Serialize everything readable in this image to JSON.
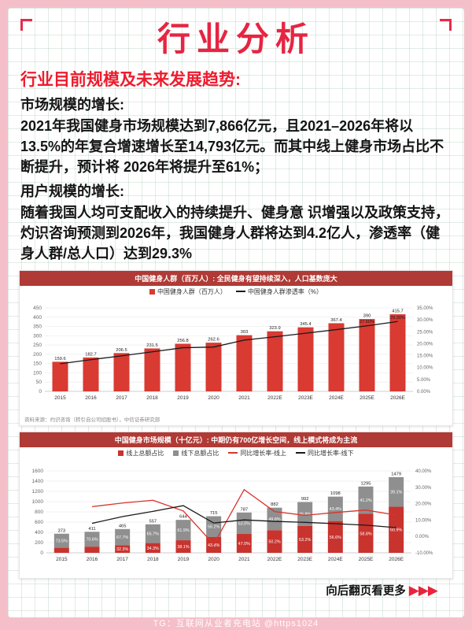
{
  "frame": {
    "watermark": "TG：互联网从业者充电站 @https1024"
  },
  "header": {
    "title": "行业分析"
  },
  "section": {
    "subtitle": "行业目前规模及未来发展趋势:"
  },
  "body": {
    "market_heading": "市场规模的增长:",
    "market_text": "2021年我国健身市场规模达到7,866亿元，且2021–2026年将以13.5%的年复合增速增长至14,793亿元。而其中线上健身市场占比不断提升，预计将 2026年将提升至61%；",
    "user_heading": "用户规模的增长:",
    "user_text": "随着我国人均可支配收入的持续提升、健身意 识增强以及政策支持，灼识咨询预测到2026年，我国健身人群将达到4.2亿人，渗透率（健身人群/总人口）达到29.3%"
  },
  "footer": {
    "more": "向后翻页看更多",
    "arrows": "▶▶▶"
  },
  "chart_data": [
    {
      "type": "bar",
      "title": "中国健身人群（百万人）: 全民健身有望持续深入，人口基数庞大",
      "legend": [
        "中国健身人群（百万人）",
        "中国健身人群渗透率（%）"
      ],
      "categories": [
        "2015",
        "2016",
        "2017",
        "2018",
        "2019",
        "2020",
        "2021",
        "2022E",
        "2023E",
        "2024E",
        "2025E",
        "2026E"
      ],
      "bars": {
        "name": "中国健身人群（百万人）",
        "color": "#d93a32",
        "values": [
          159.6,
          182.7,
          206.5,
          231.5,
          256.8,
          262.6,
          303,
          323.9,
          345.4,
          367.4,
          390,
          415.7
        ]
      },
      "line": {
        "name": "中国健身人群渗透率（%）",
        "color": "#1a1a1a",
        "values": [
          11.6,
          13.3,
          14.9,
          16.6,
          18.3,
          18.6,
          21.5,
          22.9,
          24.4,
          25.9,
          27.5,
          29.3
        ],
        "labels": {
          "10": "27.50%",
          "11": "29.30%"
        }
      },
      "left_axis": {
        "min": 0,
        "max": 450,
        "step": 50
      },
      "right_axis": {
        "min": 0,
        "max": 35,
        "step": 5,
        "suffix": "%"
      },
      "source": "资料来源：灼识咨询（转引自公司招股书），中信证券研究部"
    },
    {
      "type": "stacked-bar+line",
      "title": "中国健身市场规模（十亿元）: 中期仍有700亿增长空间，线上模式将成为主流",
      "legend": [
        "线上总额占比",
        "线下总额占比",
        "同比增长率-线上",
        "同比增长率-线下"
      ],
      "categories": [
        "2015",
        "2016",
        "2017",
        "2018",
        "2019",
        "2020",
        "2021",
        "2022E",
        "2023E",
        "2024E",
        "2025E",
        "2026E"
      ],
      "totals": [
        373,
        411,
        465,
        557,
        644,
        715,
        787,
        882,
        992,
        1098,
        1295,
        1479
      ],
      "online_share": [
        26.5,
        29.4,
        32.3,
        34.3,
        38.1,
        43.8,
        47.0,
        50.2,
        53.2,
        56.6,
        58.8,
        60.9
      ],
      "offline_share": [
        73.5,
        70.6,
        67.7,
        65.7,
        61.9,
        56.2,
        53.0,
        49.8,
        46.8,
        43.4,
        41.2,
        39.1
      ],
      "colors": {
        "online": "#c8332e",
        "offline": "#8f8f8f"
      },
      "lines": [
        {
          "name": "同比增长率-线上",
          "color": "#d9342b",
          "values": [
            null,
            18.2,
            20.4,
            22.1,
            15.6,
            -4.8,
            28.6,
            15.2,
            12.9,
            14.6,
            16.1,
            13.0
          ]
        },
        {
          "name": "同比增长率-线下",
          "color": "#1a1a1a",
          "values": [
            null,
            8.0,
            12.1,
            15.3,
            18.8,
            8.2,
            10.1,
            9.2,
            8.6,
            7.8,
            6.9,
            5.4
          ]
        }
      ],
      "left_axis": {
        "min": 0,
        "max": 1600,
        "step": 200
      },
      "right_axis": {
        "min": -10,
        "max": 40,
        "step": 10,
        "suffix": "%"
      }
    }
  ]
}
